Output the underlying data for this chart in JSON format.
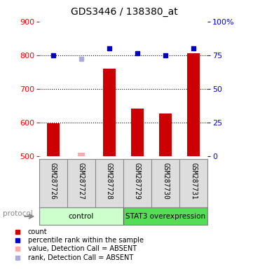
{
  "title": "GDS3446 / 138380_at",
  "samples": [
    "GSM287726",
    "GSM287727",
    "GSM287728",
    "GSM287729",
    "GSM287730",
    "GSM287731"
  ],
  "bar_values": [
    597,
    null,
    760,
    642,
    627,
    805
  ],
  "bar_absent": [
    null,
    510,
    null,
    null,
    null,
    null
  ],
  "percentile_values": [
    800,
    null,
    820,
    805,
    800,
    820
  ],
  "percentile_absent": [
    null,
    790,
    null,
    null,
    null,
    null
  ],
  "bar_color": "#cc0000",
  "bar_absent_color": "#ffaaaa",
  "percentile_color": "#0000cc",
  "percentile_absent_color": "#aaaadd",
  "ymin": 500,
  "ymax": 900,
  "yticks": [
    500,
    600,
    700,
    800,
    900
  ],
  "y2ticks_values": [
    0,
    25,
    50,
    75,
    100
  ],
  "y2ticks_labels": [
    "0",
    "25",
    "50",
    "75",
    "100%"
  ],
  "protocol_groups": [
    {
      "label": "control",
      "start": 0,
      "end": 3,
      "color": "#ccffcc"
    },
    {
      "label": "STAT3 overexpression",
      "start": 3,
      "end": 6,
      "color": "#55dd55"
    }
  ],
  "bg_color": "#dddddd",
  "legend_items": [
    {
      "color": "#cc0000",
      "label": "count"
    },
    {
      "color": "#0000cc",
      "label": "percentile rank within the sample"
    },
    {
      "color": "#ffaaaa",
      "label": "value, Detection Call = ABSENT"
    },
    {
      "color": "#aaaadd",
      "label": "rank, Detection Call = ABSENT"
    }
  ]
}
